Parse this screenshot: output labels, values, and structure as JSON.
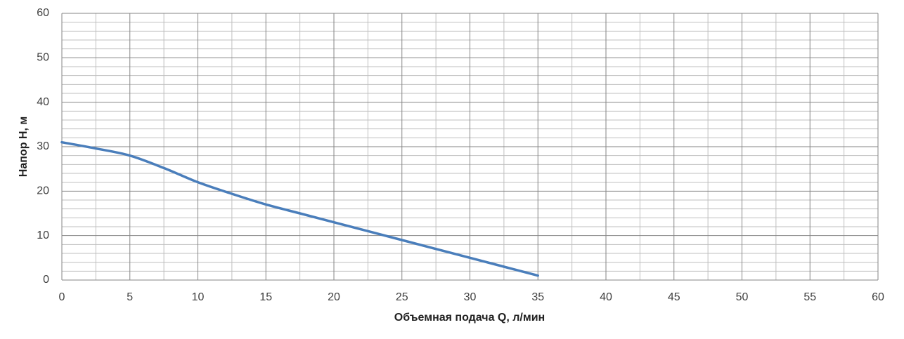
{
  "chart_data": {
    "type": "line",
    "x_label": "Объемная подача Q, л/мин",
    "y_label": "Напор H, м",
    "x": [
      0,
      2.5,
      5,
      7.5,
      10,
      12.5,
      15,
      17.5,
      20,
      22.5,
      25,
      27.5,
      30,
      32.5,
      35
    ],
    "series": [
      {
        "color": "#4a7ebb",
        "values": [
          31,
          29.6,
          28,
          25.2,
          22,
          19.4,
          17,
          15,
          13,
          11,
          9,
          7,
          5,
          3,
          1
        ]
      }
    ],
    "xlim": [
      0,
      60
    ],
    "xticks": [
      0,
      5,
      10,
      15,
      20,
      25,
      30,
      35,
      40,
      45,
      50,
      55,
      60
    ],
    "ylim": [
      0,
      60
    ],
    "yticks": [
      0,
      10,
      20,
      30,
      40,
      50,
      60
    ],
    "grid": true,
    "minor_grid": true
  }
}
